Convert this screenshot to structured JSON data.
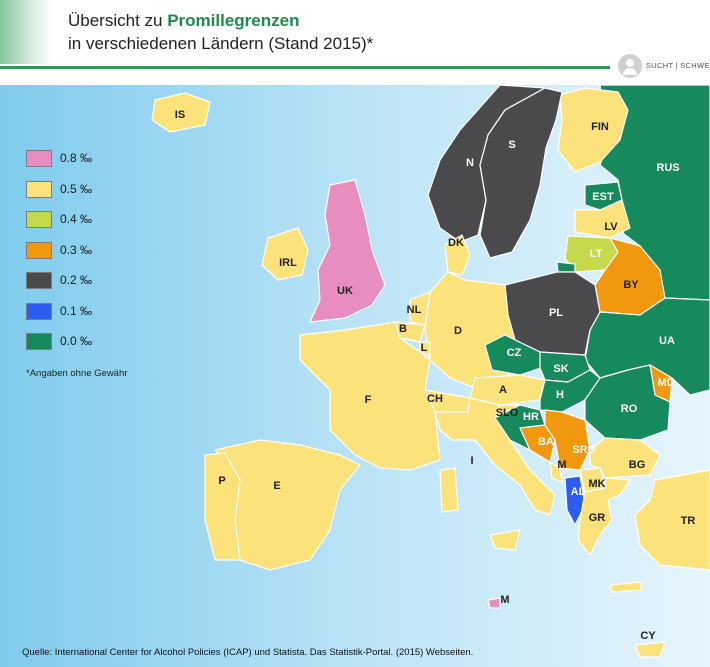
{
  "header": {
    "title_line1_prefix": "Übersicht zu ",
    "title_line1_highlight": "Promillegrenzen",
    "title_line2": "in verschiedenen Ländern (Stand 2015)*",
    "brand_text": "SUCHT | SCHWEIZ"
  },
  "colors": {
    "sea": "#8fd0ee",
    "c08": "#e88dc0",
    "c05": "#fce27b",
    "c04": "#c6d94d",
    "c03": "#f2980f",
    "c02": "#4a4a4c",
    "c01": "#2d5cf2",
    "c00": "#178a5d",
    "accent": "#2e9a55"
  },
  "legend": [
    {
      "label": "0.8 ‰",
      "color": "#e88dc0"
    },
    {
      "label": "0.5 ‰",
      "color": "#fce27b"
    },
    {
      "label": "0.4 ‰",
      "color": "#c6d94d"
    },
    {
      "label": "0.3 ‰",
      "color": "#f2980f"
    },
    {
      "label": "0.2 ‰",
      "color": "#4a4a4c"
    },
    {
      "label": "0.1 ‰",
      "color": "#2d5cf2"
    },
    {
      "label": "0.0 ‰",
      "color": "#178a5d"
    }
  ],
  "disclaimer": "*Angaben ohne Gewähr",
  "source": "Quelle: International Center for Alcohol Policies (ICAP) und Statista. Das Statistik-Portal. (2015) Webseiten.",
  "countries": {
    "IS": {
      "label": "IS",
      "limit": "0.5 ‰"
    },
    "N": {
      "label": "N",
      "limit": "0.2 ‰"
    },
    "S": {
      "label": "S",
      "limit": "0.2 ‰"
    },
    "FIN": {
      "label": "FIN",
      "limit": "0.5 ‰"
    },
    "RUS": {
      "label": "RUS",
      "limit": "0.0 ‰"
    },
    "EST": {
      "label": "EST",
      "limit": "0.0 ‰"
    },
    "LV": {
      "label": "LV",
      "limit": "0.5 ‰"
    },
    "LT": {
      "label": "LT",
      "limit": "0.4 ‰"
    },
    "BY": {
      "label": "BY",
      "limit": "0.3 ‰"
    },
    "DK": {
      "label": "DK",
      "limit": "0.5 ‰"
    },
    "IRL": {
      "label": "IRL",
      "limit": "0.5 ‰"
    },
    "UK": {
      "label": "UK",
      "limit": "0.8 ‰"
    },
    "NL": {
      "label": "NL",
      "limit": "0.5 ‰"
    },
    "B": {
      "label": "B",
      "limit": "0.5 ‰"
    },
    "L": {
      "label": "L",
      "limit": "0.5 ‰"
    },
    "D": {
      "label": "D",
      "limit": "0.5 ‰"
    },
    "PL": {
      "label": "PL",
      "limit": "0.2 ‰"
    },
    "UA": {
      "label": "UA",
      "limit": "0.0 ‰"
    },
    "CZ": {
      "label": "CZ",
      "limit": "0.0 ‰"
    },
    "SK": {
      "label": "SK",
      "limit": "0.0 ‰"
    },
    "MD": {
      "label": "MD",
      "limit": "0.3 ‰"
    },
    "F": {
      "label": "F",
      "limit": "0.5 ‰"
    },
    "CH": {
      "label": "CH",
      "limit": "0.5 ‰"
    },
    "A": {
      "label": "A",
      "limit": "0.5 ‰"
    },
    "H": {
      "label": "H",
      "limit": "0.0 ‰"
    },
    "RO": {
      "label": "RO",
      "limit": "0.0 ‰"
    },
    "SLO": {
      "label": "SLO",
      "limit": "0.5 ‰"
    },
    "HR": {
      "label": "HR",
      "limit": "0.0 ‰"
    },
    "BA": {
      "label": "BA",
      "limit": "0.3 ‰"
    },
    "SRB": {
      "label": "SRB",
      "limit": "0.3 ‰"
    },
    "BG": {
      "label": "BG",
      "limit": "0.5 ‰"
    },
    "I": {
      "label": "I",
      "limit": "0.5 ‰"
    },
    "M_ME": {
      "label": "M",
      "limit": "0.5 ‰"
    },
    "MK": {
      "label": "MK",
      "limit": "0.5 ‰"
    },
    "AL": {
      "label": "AL",
      "limit": "0.1 ‰"
    },
    "GR": {
      "label": "GR",
      "limit": "0.5 ‰"
    },
    "TR": {
      "label": "TR",
      "limit": "0.5 ‰"
    },
    "P": {
      "label": "P",
      "limit": "0.5 ‰"
    },
    "E": {
      "label": "E",
      "limit": "0.5 ‰"
    },
    "M_MT": {
      "label": "M",
      "limit": "0.8 ‰"
    },
    "CY": {
      "label": "CY",
      "limit": "0.5 ‰"
    }
  }
}
